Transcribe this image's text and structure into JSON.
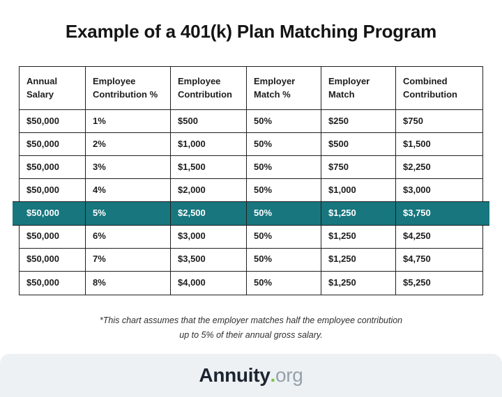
{
  "title": "Example of a 401(k) Plan Matching Program",
  "chart_data": {
    "type": "table",
    "title": "Example of a 401(k) Plan Matching Program",
    "columns": [
      "Annual Salary",
      "Employee Contribution %",
      "Employee Contribution",
      "Employer Match %",
      "Employer Match",
      "Combined Contribution"
    ],
    "rows": [
      [
        "$50,000",
        "1%",
        "$500",
        "50%",
        "$250",
        "$750"
      ],
      [
        "$50,000",
        "2%",
        "$1,000",
        "50%",
        "$500",
        "$1,500"
      ],
      [
        "$50,000",
        "3%",
        "$1,500",
        "50%",
        "$750",
        "$2,250"
      ],
      [
        "$50,000",
        "4%",
        "$2,000",
        "50%",
        "$1,000",
        "$3,000"
      ],
      [
        "$50,000",
        "5%",
        "$2,500",
        "50%",
        "$1,250",
        "$3,750"
      ],
      [
        "$50,000",
        "6%",
        "$3,000",
        "50%",
        "$1,250",
        "$4,250"
      ],
      [
        "$50,000",
        "7%",
        "$3,500",
        "50%",
        "$1,250",
        "$4,750"
      ],
      [
        "$50,000",
        "8%",
        "$4,000",
        "50%",
        "$1,250",
        "$5,250"
      ]
    ],
    "highlighted_row_index": 4,
    "footnote": "*This chart assumes that the employer matches half the employee contribution up to 5% of their annual gross salary."
  },
  "footnote": {
    "line1": "*This chart assumes that the employer matches half the employee contribution",
    "line2": "up to 5% of their annual gross salary."
  },
  "footer": {
    "brand": "Annuity",
    "dot": ".",
    "suffix": "org"
  },
  "colors": {
    "highlight_teal": "#17767e",
    "table_border": "#1f1f1f",
    "footer_background": "#edf1f4",
    "brand_dark": "#1d2430",
    "brand_gray": "#95a1aa",
    "dot_green": "#7fc241"
  }
}
